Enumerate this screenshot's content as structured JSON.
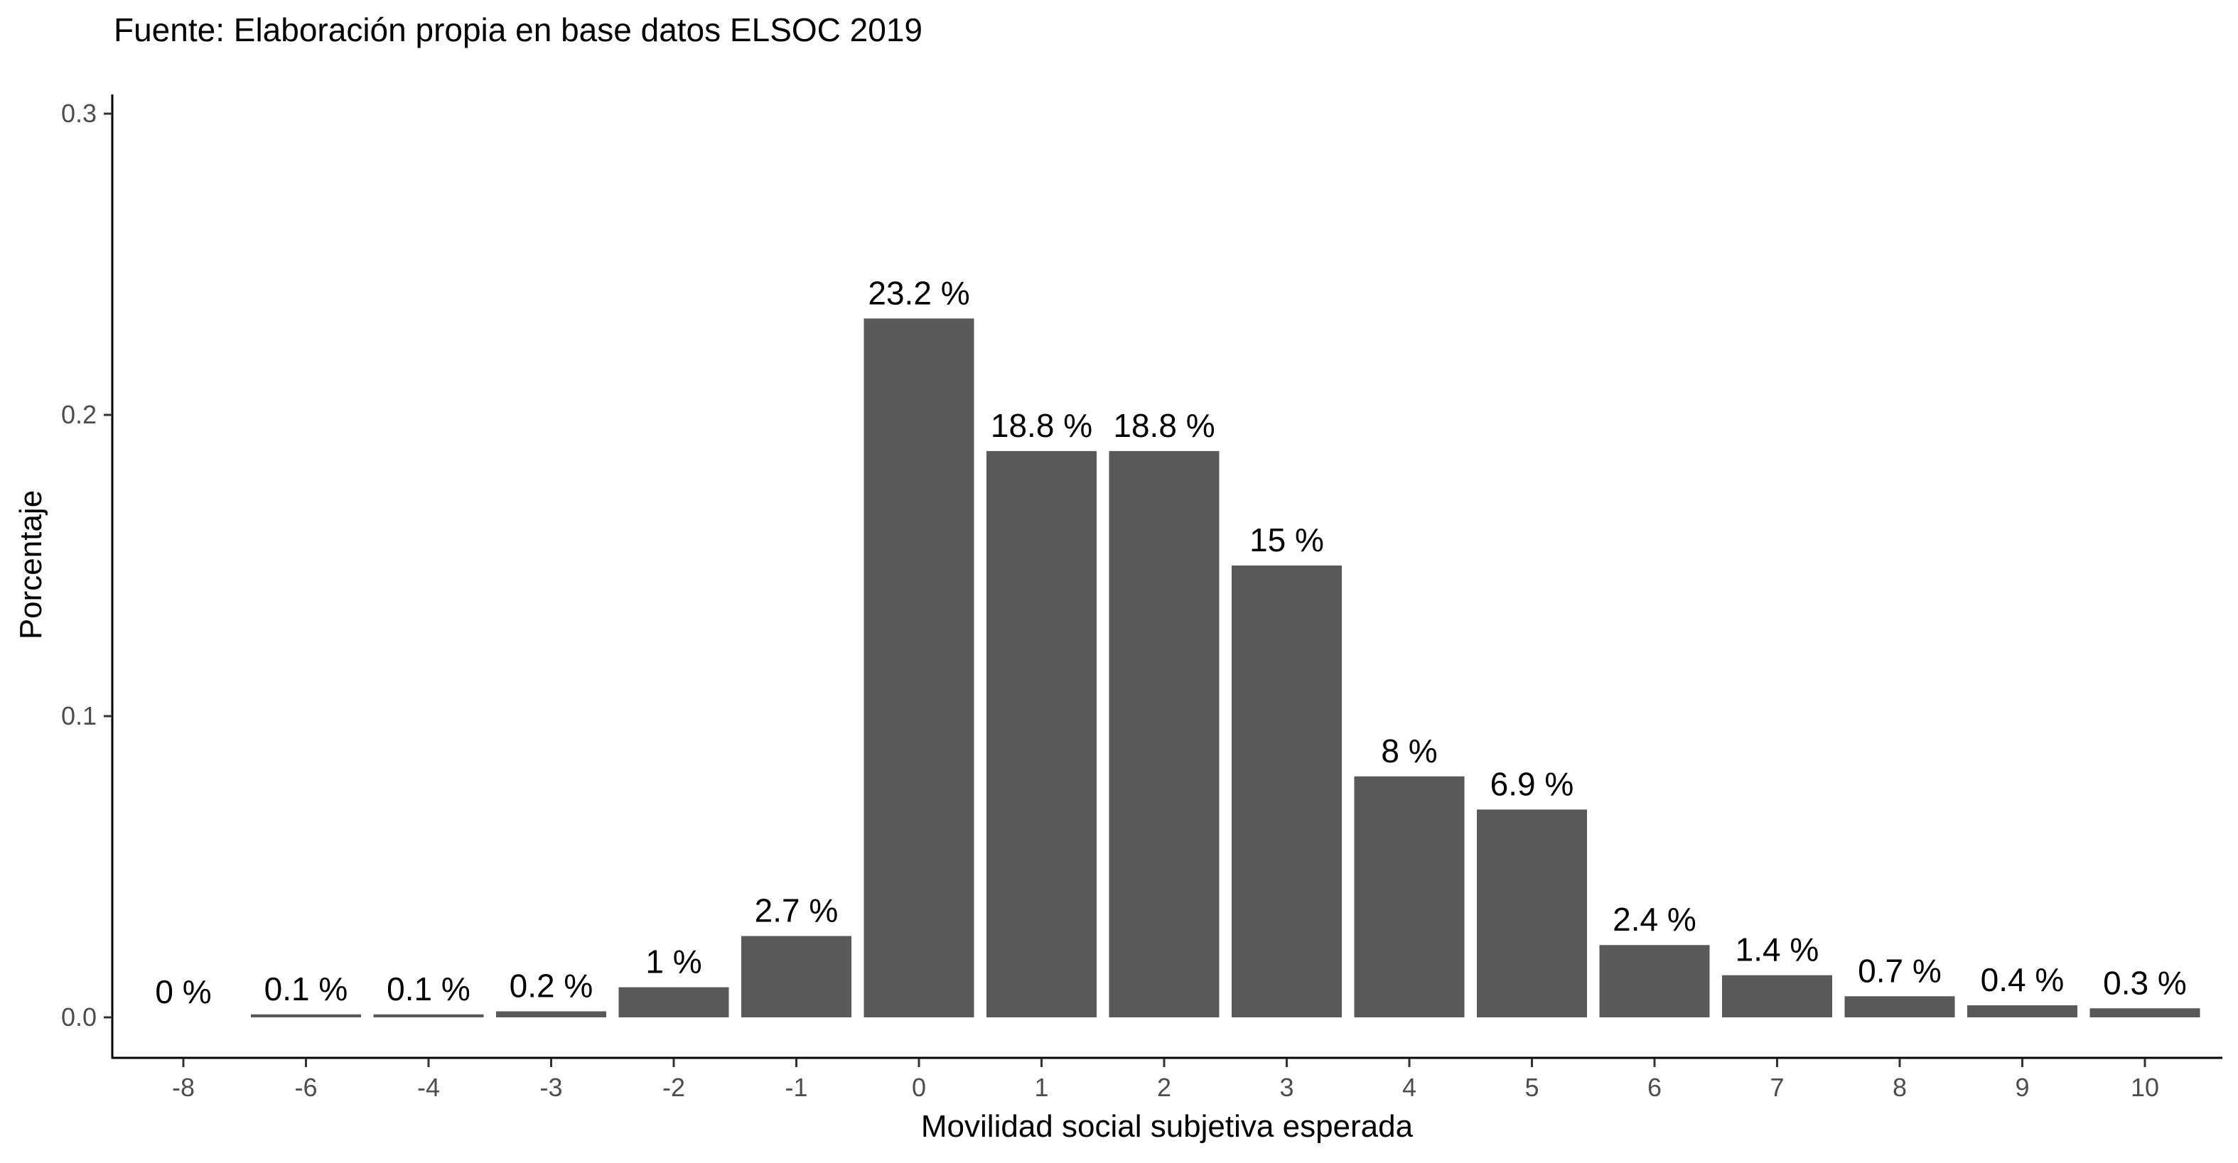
{
  "caption": "Fuente: Elaboración propia en base datos ELSOC 2019",
  "chart_data": {
    "type": "bar",
    "title": "",
    "xlabel": "Movilidad social subjetiva esperada",
    "ylabel": "Porcentaje",
    "ylim": [
      0,
      0.3
    ],
    "yticks": [
      "0.0",
      "0.1",
      "0.2",
      "0.3"
    ],
    "categories": [
      "-8",
      "-6",
      "-4",
      "-3",
      "-2",
      "-1",
      "0",
      "1",
      "2",
      "3",
      "4",
      "5",
      "6",
      "7",
      "8",
      "9",
      "10"
    ],
    "values": [
      0.0,
      0.001,
      0.001,
      0.002,
      0.01,
      0.027,
      0.232,
      0.188,
      0.188,
      0.15,
      0.08,
      0.069,
      0.024,
      0.014,
      0.007,
      0.004,
      0.003
    ],
    "labels": [
      "0 %",
      "0.1 %",
      "0.1 %",
      "0.2 %",
      "1 %",
      "2.7 %",
      "23.2 %",
      "18.8 %",
      "18.8 %",
      "15 %",
      "8 %",
      "6.9 %",
      "2.4 %",
      "1.4 %",
      "0.7 %",
      "0.4 %",
      "0.3 %"
    ],
    "bar_color": "#595959",
    "grid": false,
    "legend": "none"
  }
}
